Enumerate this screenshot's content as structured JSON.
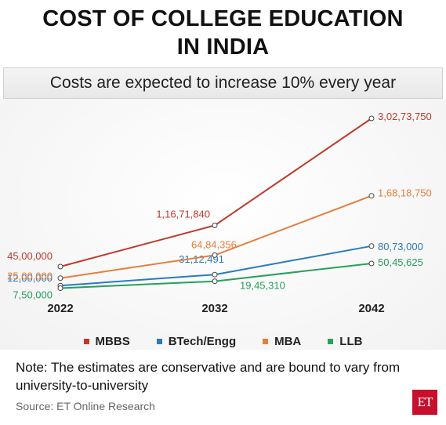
{
  "title_line1": "COST OF COLLEGE EDUCATION",
  "title_line2": "IN INDIA",
  "subtitle": "Costs are expected to increase 10% every year",
  "note": "Note: The estimates are conservative and are bound to vary from university-to-university",
  "source": "Source: ET Online Research",
  "logo_text": "ET",
  "chart_data": {
    "type": "line",
    "categories": [
      "2022",
      "2032",
      "2042"
    ],
    "grid": false,
    "legend_position": "bottom",
    "series": [
      {
        "name": "MBBS",
        "color": "#c0392b",
        "values": [
          4500000,
          11671840,
          30273750
        ],
        "labels": [
          "45,00,000",
          "1,16,71,840",
          "3,02,73,750"
        ]
      },
      {
        "name": "BTech/Engg",
        "color": "#2b7bbf",
        "values": [
          1200000,
          3112491,
          8073000
        ],
        "labels": [
          "12,00,000",
          "31,12,491",
          "80,73,000"
        ]
      },
      {
        "name": "MBA",
        "color": "#e67e3c",
        "values": [
          2500000,
          6484356,
          16818750
        ],
        "labels": [
          "25,00,000",
          "64,84,356",
          "1,68,18,750"
        ]
      },
      {
        "name": "LLB",
        "color": "#27a05a",
        "values": [
          750000,
          1945310,
          5045625
        ],
        "labels": [
          "7,50,000",
          "19,45,310",
          "50,45,625"
        ]
      }
    ]
  }
}
